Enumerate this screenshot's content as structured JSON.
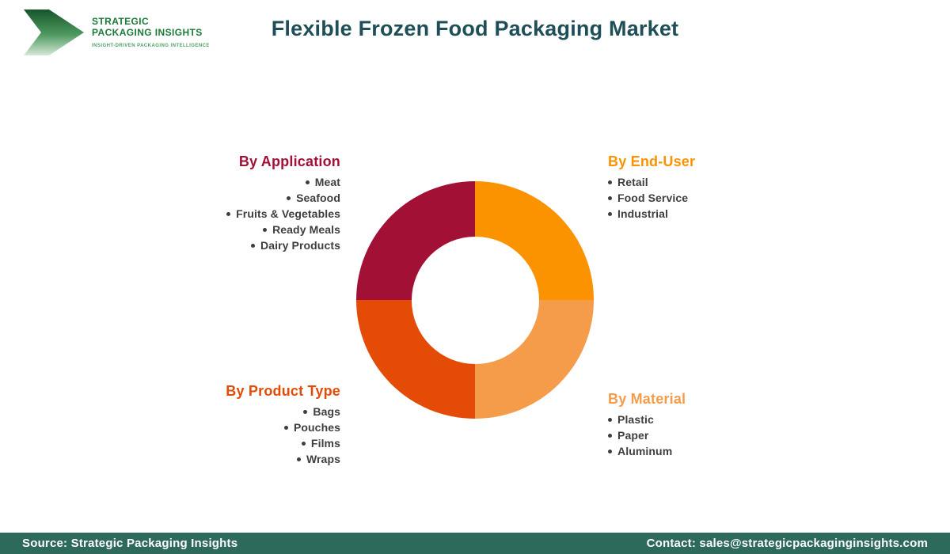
{
  "brand": {
    "name": "STRATEGIC\nPACKAGING INSIGHTS",
    "tagline": "INSIGHT-DRIVEN PACKAGING INTELLIGENCE",
    "chevron_color_dark": "#17552b",
    "chevron_color_light": "#d6e9d6"
  },
  "header": {
    "title": "Flexible Frozen Food Packaging Market",
    "title_color": "#1e4f58"
  },
  "chart_data": {
    "type": "pie",
    "donut": true,
    "title": "Flexible Frozen Food Packaging Market",
    "inner_radius_ratio": 0.54,
    "rotation_start": "top",
    "direction": "clockwise",
    "legend_position": "four-corners",
    "segments": [
      {
        "name": "By End-User",
        "value": 25,
        "start_angle_deg": 0,
        "end_angle_deg": 90,
        "color": "#fb9200",
        "position": "top-right",
        "items": [
          "Retail",
          "Food Service",
          "Industrial"
        ]
      },
      {
        "name": "By Material",
        "value": 25,
        "start_angle_deg": 90,
        "end_angle_deg": 180,
        "color": "#f49c4a",
        "position": "bottom-right",
        "items": [
          "Plastic",
          "Paper",
          "Aluminum"
        ]
      },
      {
        "name": "By Product Type",
        "value": 25,
        "start_angle_deg": 180,
        "end_angle_deg": 270,
        "color": "#e34b07",
        "position": "bottom-left",
        "items": [
          "Bags",
          "Pouches",
          "Films",
          "Wraps"
        ]
      },
      {
        "name": "By Application",
        "value": 25,
        "start_angle_deg": 270,
        "end_angle_deg": 360,
        "color": "#a21035",
        "position": "top-left",
        "items": [
          "Meat",
          "Seafood",
          "Fruits & Vegetables",
          "Ready Meals",
          "Dairy Products"
        ]
      }
    ]
  },
  "footer": {
    "source": "Source: Strategic Packaging Insights",
    "contact": "Contact: sales@strategicpackaginginsights.com",
    "bg_color": "#2d6a5b"
  }
}
